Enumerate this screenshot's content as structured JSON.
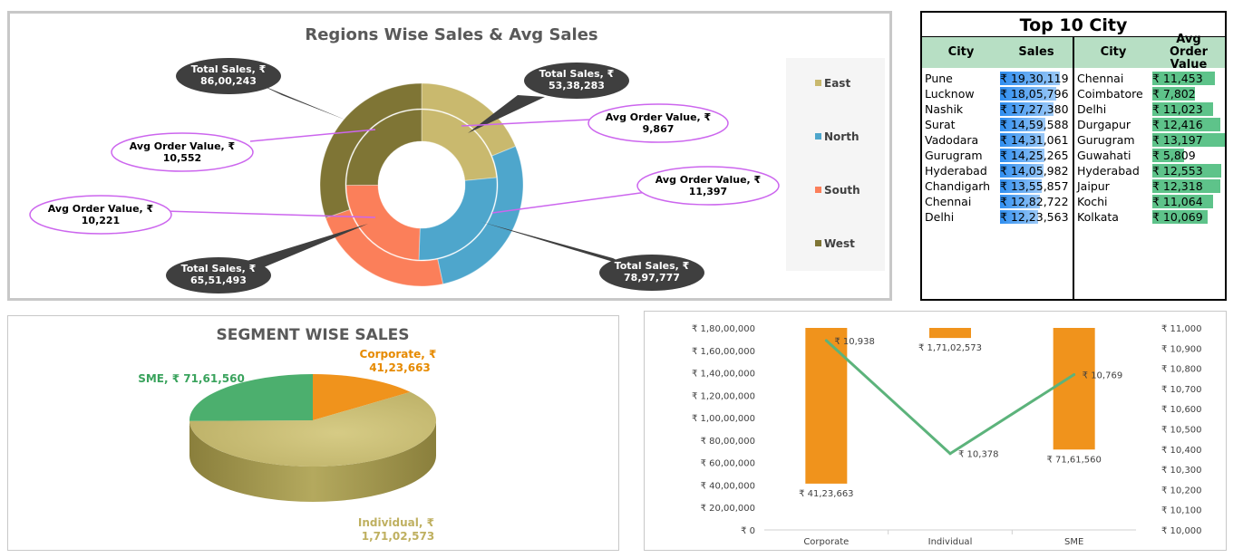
{
  "colors": {
    "east": "#c9b96e",
    "north": "#4ea6cc",
    "south": "#fb7f5a",
    "west": "#7f7535",
    "corporate": "#f0931c",
    "individual": "#c4b96b",
    "sme": "#4caf6e",
    "line": "#5cb37b",
    "callout_purple": "#cc66ee"
  },
  "chart_data": [
    {
      "type": "pie",
      "title": "Regions Wise Sales & Avg Sales",
      "legend": [
        "East",
        "North",
        "South",
        "West"
      ],
      "series": [
        {
          "name": "Total Sales",
          "labels": [
            "East",
            "North",
            "South",
            "West"
          ],
          "values": [
            5338283,
            7897777,
            6551493,
            8600243
          ],
          "display": [
            "Total Sales, ₹ 53,38,283",
            "Total Sales, ₹ 78,97,777",
            "Total Sales, ₹ 65,51,493",
            "Total Sales, ₹ 86,00,243"
          ]
        },
        {
          "name": "Avg Order Value",
          "labels": [
            "East",
            "North",
            "South",
            "West"
          ],
          "values": [
            9867,
            11397,
            10221,
            10552
          ],
          "display": [
            "Avg Order Value, ₹ 9,867",
            "Avg Order Value, ₹ 11,397",
            "Avg Order Value, ₹ 10,221",
            "Avg Order Value, ₹ 10,552"
          ]
        }
      ]
    },
    {
      "type": "table",
      "title": "Top 10 City",
      "columns": [
        "City",
        "Sales",
        "City",
        "Avg Order Value"
      ],
      "sales_rows": [
        {
          "city": "Pune",
          "value": 1930119,
          "label": "₹ 19,30,119"
        },
        {
          "city": "Lucknow",
          "value": 1805796,
          "label": "₹ 18,05,796"
        },
        {
          "city": "Nashik",
          "value": 1727380,
          "label": "₹ 17,27,380"
        },
        {
          "city": "Surat",
          "value": 1459588,
          "label": "₹ 14,59,588"
        },
        {
          "city": "Vadodara",
          "value": 1431061,
          "label": "₹ 14,31,061"
        },
        {
          "city": "Gurugram",
          "value": 1425265,
          "label": "₹ 14,25,265"
        },
        {
          "city": "Hyderabad",
          "value": 1405982,
          "label": "₹ 14,05,982"
        },
        {
          "city": "Chandigarh",
          "value": 1355857,
          "label": "₹ 13,55,857"
        },
        {
          "city": "Chennai",
          "value": 1282722,
          "label": "₹ 12,82,722"
        },
        {
          "city": "Delhi",
          "value": 1223563,
          "label": "₹ 12,23,563"
        }
      ],
      "aov_rows": [
        {
          "city": "Chennai",
          "value": 11453,
          "label": "₹ 11,453"
        },
        {
          "city": "Coimbatore",
          "value": 7802,
          "label": "₹ 7,802"
        },
        {
          "city": "Delhi",
          "value": 11023,
          "label": "₹ 11,023"
        },
        {
          "city": "Durgapur",
          "value": 12416,
          "label": "₹ 12,416"
        },
        {
          "city": "Gurugram",
          "value": 13197,
          "label": "₹ 13,197"
        },
        {
          "city": "Guwahati",
          "value": 5809,
          "label": "₹ 5,809"
        },
        {
          "city": "Hyderabad",
          "value": 12553,
          "label": "₹ 12,553"
        },
        {
          "city": "Jaipur",
          "value": 12318,
          "label": "₹ 12,318"
        },
        {
          "city": "Kochi",
          "value": 11064,
          "label": "₹ 11,064"
        },
        {
          "city": "Kolkata",
          "value": 10069,
          "label": "₹ 10,069"
        }
      ]
    },
    {
      "type": "pie",
      "title": "SEGMENT WISE SALES",
      "labels": [
        "Corporate",
        "Individual",
        "SME"
      ],
      "values": [
        4123663,
        17102573,
        7161560
      ],
      "display": [
        [
          "Corporate, ₹",
          "41,23,663"
        ],
        [
          "Individual, ₹",
          "1,71,02,573"
        ],
        [
          "SME, ₹ 71,61,560"
        ]
      ]
    },
    {
      "type": "bar",
      "title": "",
      "categories": [
        "Corporate",
        "Individual",
        "SME"
      ],
      "series": [
        {
          "name": "Sales",
          "type": "bar",
          "axis": "left",
          "values": [
            4123663,
            17102573,
            7161560
          ],
          "labels": [
            "₹ 41,23,663",
            "₹ 1,71,02,573",
            "₹ 71,61,560"
          ]
        },
        {
          "name": "Avg Order Value",
          "type": "line",
          "axis": "right",
          "values": [
            10938,
            10378,
            10769
          ],
          "labels": [
            "₹ 10,938",
            "₹ 10,378",
            "₹ 10,769"
          ]
        }
      ],
      "ylim": [
        0,
        18000000
      ],
      "y2lim": [
        10000,
        11000
      ],
      "yticks": [
        "₹ 0",
        "₹ 20,00,000",
        "₹ 40,00,000",
        "₹ 60,00,000",
        "₹ 80,00,000",
        "₹ 1,00,00,000",
        "₹ 1,20,00,000",
        "₹ 1,40,00,000",
        "₹ 1,60,00,000",
        "₹ 1,80,00,000"
      ],
      "y2ticks": [
        "₹ 10,000",
        "₹ 10,100",
        "₹ 10,200",
        "₹ 10,300",
        "₹ 10,400",
        "₹ 10,500",
        "₹ 10,600",
        "₹ 10,700",
        "₹ 10,800",
        "₹ 10,900",
        "₹ 11,000"
      ]
    }
  ]
}
